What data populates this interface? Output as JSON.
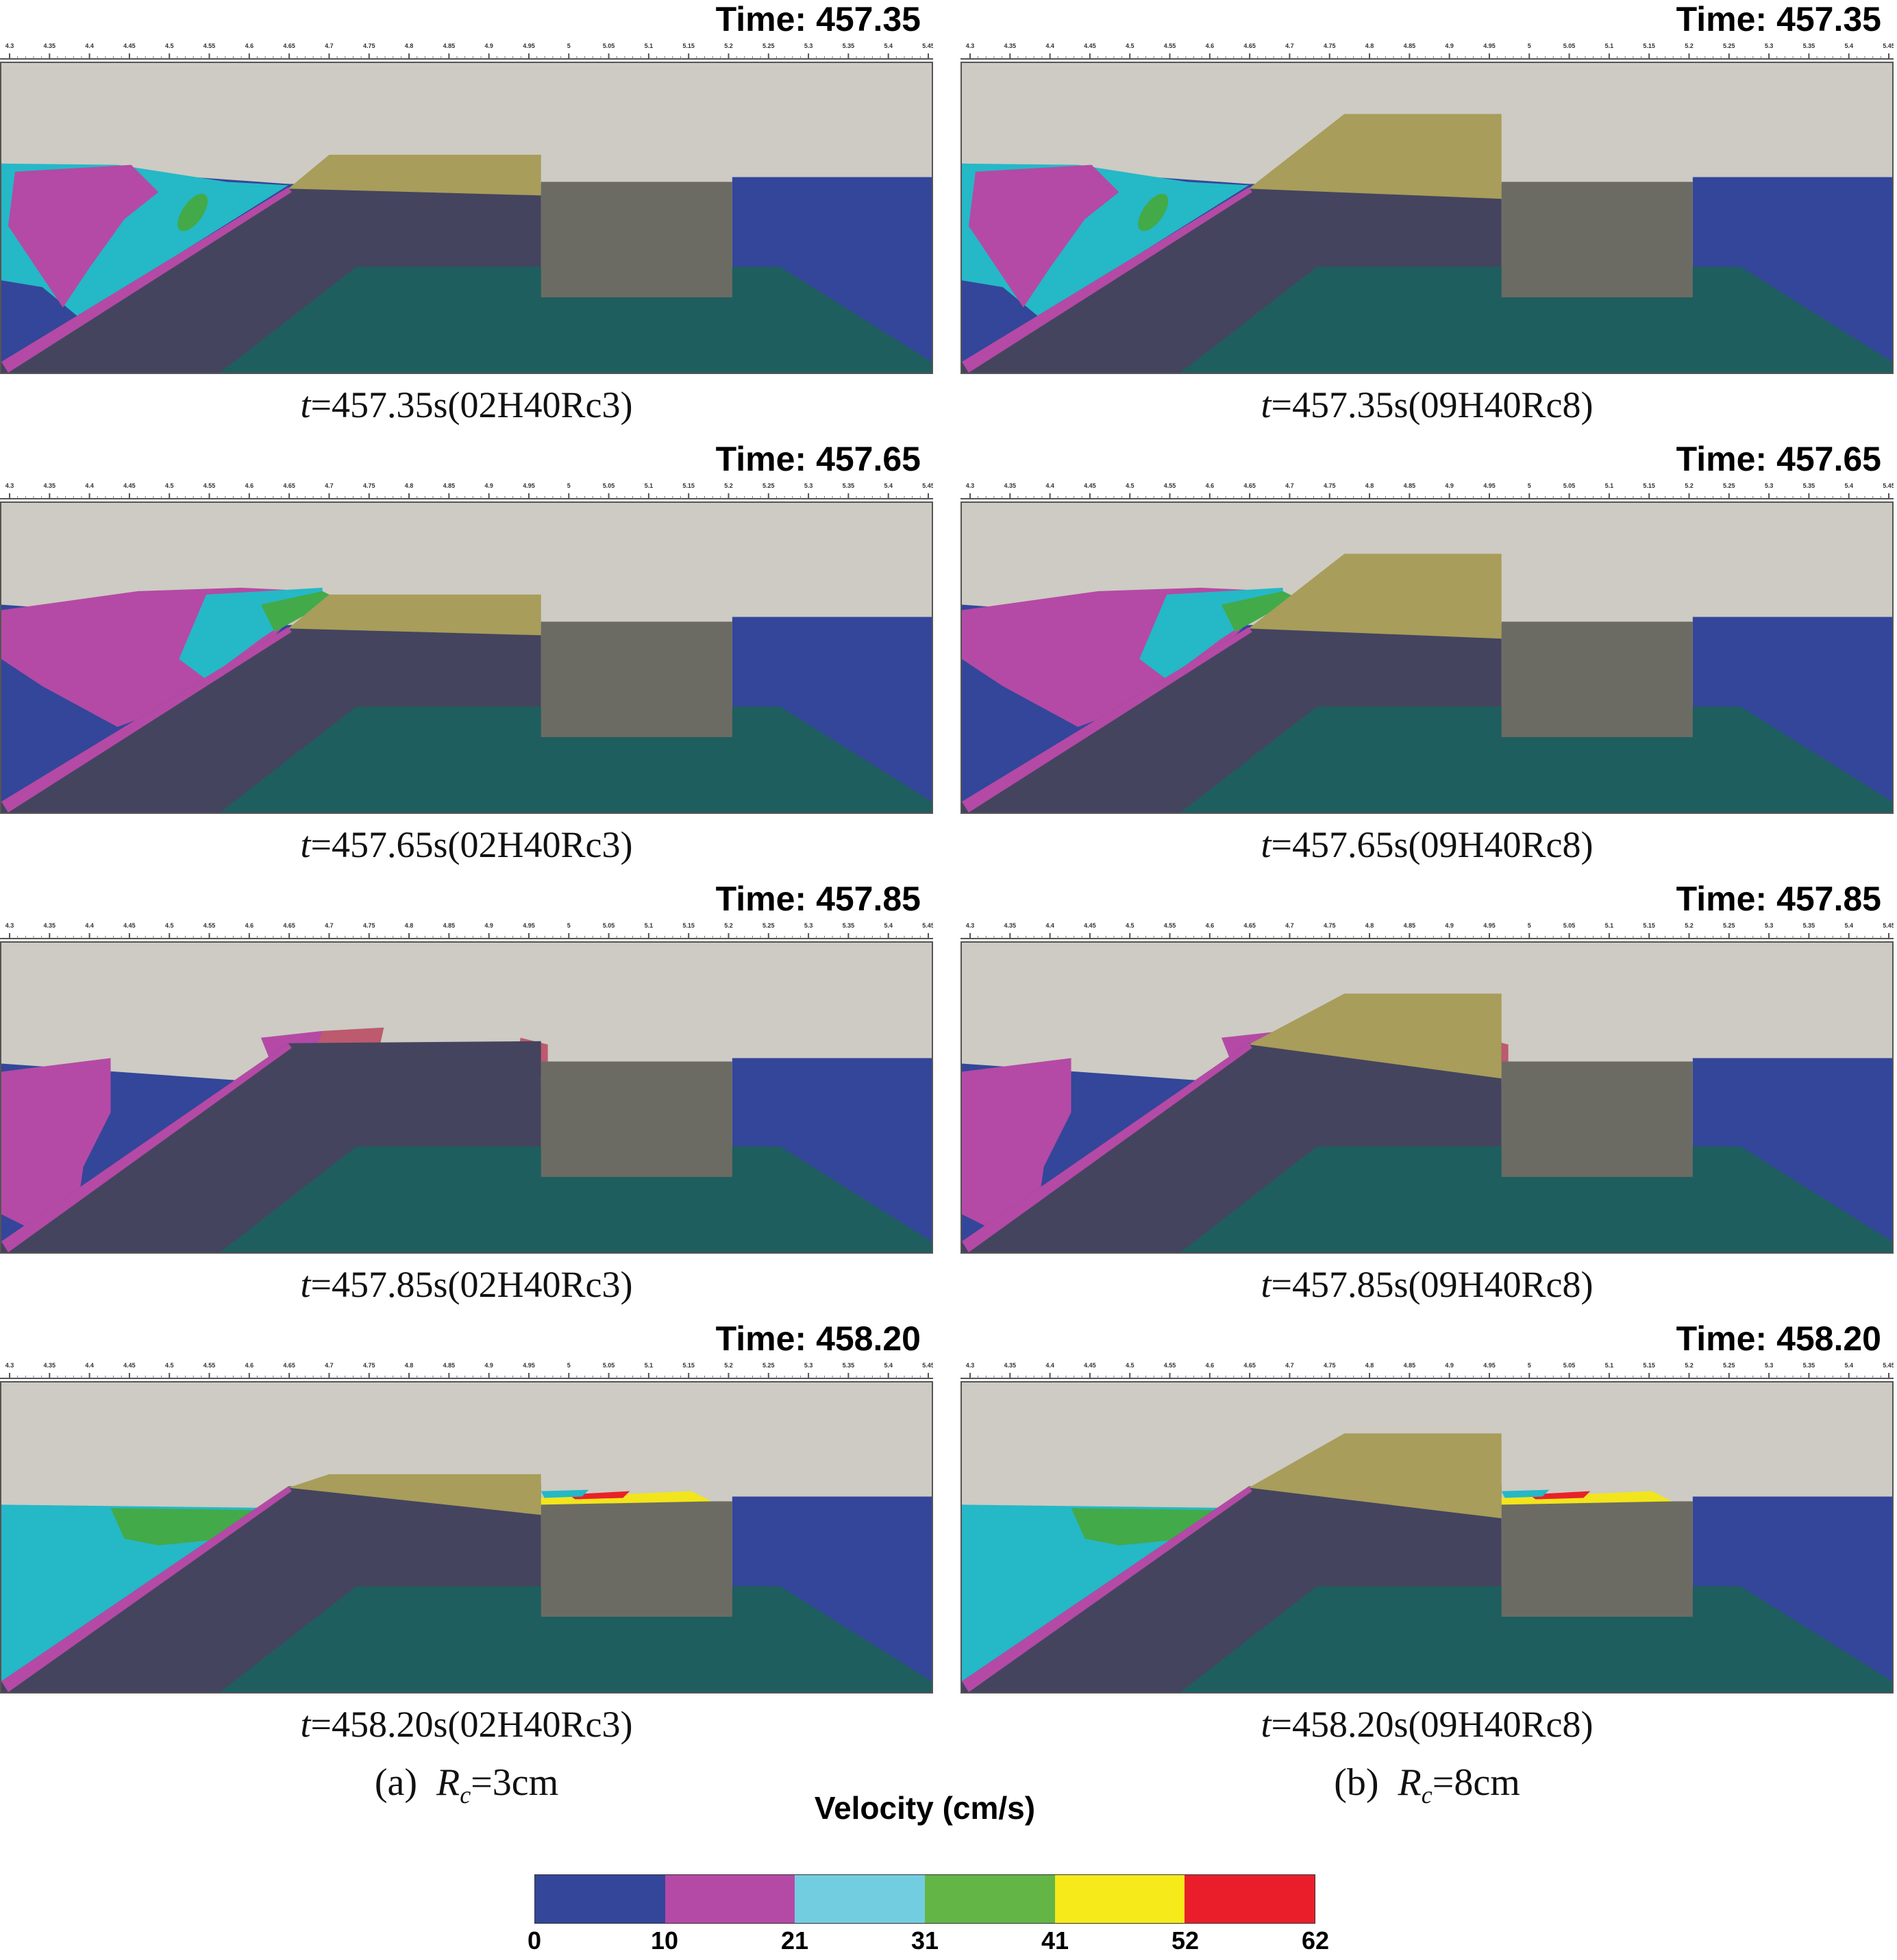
{
  "time_prefix": "Time:",
  "ruler_ticks": [
    "4.3",
    "4.35",
    "4.4",
    "4.45",
    "4.5",
    "4.55",
    "4.6",
    "4.65",
    "4.7",
    "4.75",
    "4.8",
    "4.85",
    "4.9",
    "4.95",
    "5",
    "5.05",
    "5.1",
    "5.15",
    "5.2",
    "5.25",
    "5.3",
    "5.35",
    "5.4",
    "5.45"
  ],
  "colors": {
    "air": "#cdcbc3",
    "breakwater": "#44445f",
    "bed": "#1f5e5e",
    "caisson": "#6b6b63",
    "overtop": "#a89d5a",
    "v0_10": "#33469a",
    "v10_21": "#b44aa5",
    "v21_31": "#25b8c6",
    "v31_41": "#43aa4a",
    "v41_52": "#f2e51c",
    "v52_62": "#e82228",
    "pink_zone": "#bd5a6e"
  },
  "panels": [
    {
      "time": "457.35",
      "caption_t": "t",
      "caption_rest": "=457.35s(02H40Rc3)",
      "case": "a",
      "stage": 0
    },
    {
      "time": "457.35",
      "caption_t": "t",
      "caption_rest": "=457.35s(09H40Rc8)",
      "case": "b",
      "stage": 0
    },
    {
      "time": "457.65",
      "caption_t": "t",
      "caption_rest": "=457.65s(02H40Rc3)",
      "case": "a",
      "stage": 1
    },
    {
      "time": "457.65",
      "caption_t": "t",
      "caption_rest": "=457.65s(09H40Rc8)",
      "case": "b",
      "stage": 1
    },
    {
      "time": "457.85",
      "caption_t": "t",
      "caption_rest": "=457.85s(02H40Rc3)",
      "case": "a",
      "stage": 2
    },
    {
      "time": "457.85",
      "caption_t": "t",
      "caption_rest": "=457.85s(09H40Rc8)",
      "case": "b",
      "stage": 2
    },
    {
      "time": "458.20",
      "caption_t": "t",
      "caption_rest": "=458.20s(02H40Rc3)",
      "case": "a",
      "stage": 3
    },
    {
      "time": "458.20",
      "caption_t": "t",
      "caption_rest": "=458.20s(09H40Rc8)",
      "case": "b",
      "stage": 3
    }
  ],
  "column_labels": {
    "a": {
      "prefix": "(a)",
      "var": "R",
      "sub": "c",
      "rest": "=3cm"
    },
    "b": {
      "prefix": "(b)",
      "var": "R",
      "sub": "c",
      "rest": "=8cm"
    }
  },
  "legend": {
    "title": "Velocity (cm/s)",
    "ticks": [
      "0",
      "10",
      "21",
      "31",
      "41",
      "52",
      "62"
    ],
    "swatches": [
      "#33469a",
      "#b44aa5",
      "#73cde0",
      "#63b545",
      "#f6ea1a",
      "#ea1e2a"
    ]
  }
}
